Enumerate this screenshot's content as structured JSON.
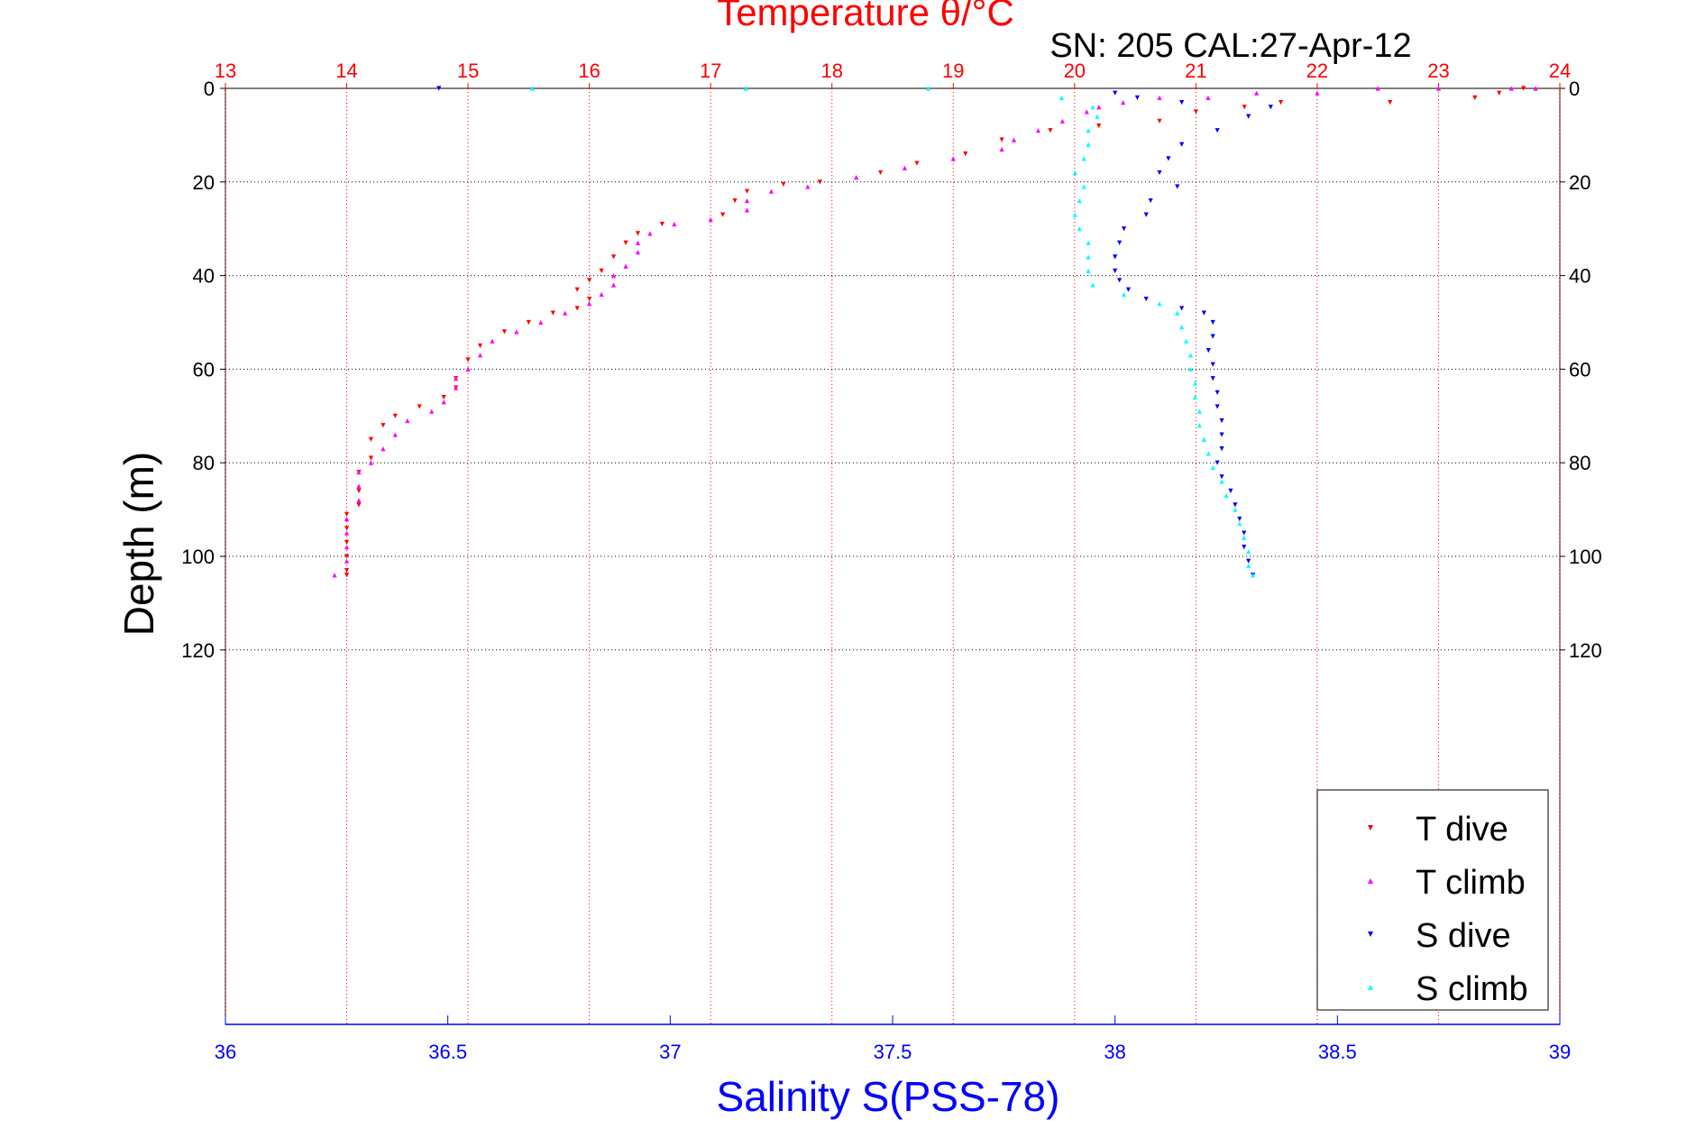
{
  "chart_data": {
    "type": "scatter",
    "title": "Temperature θ/°C",
    "subtitle": "SN: 205  CAL:27-Apr-12",
    "ylabel": "Depth (m)",
    "xlabel": "Salinity S(PSS-78)",
    "top_axis": {
      "label": "Temperature θ/°C",
      "range": [
        13,
        24
      ],
      "ticks": [
        "13",
        "14",
        "15",
        "16",
        "17",
        "18",
        "19",
        "20",
        "21",
        "22",
        "23",
        "24"
      ]
    },
    "bottom_axis": {
      "label": "Salinity S(PSS-78)",
      "range": [
        36,
        39
      ],
      "ticks": [
        "36",
        "36.5",
        "37",
        "37.5",
        "38",
        "38.5",
        "39"
      ]
    },
    "y_axis": {
      "range": [
        0,
        200
      ],
      "reversed": true,
      "ticks": [
        "0",
        "20",
        "40",
        "60",
        "80",
        "100",
        "120"
      ]
    },
    "grid": true,
    "legend_position": "bottom-right",
    "colors": {
      "temperature": "#ff0000",
      "salinity": "#0000ff",
      "T dive": "#ff0000",
      "T climb": "#ff00ff",
      "S dive": "#0000ff",
      "S climb": "#00ffff"
    },
    "series": [
      {
        "name": "T dive",
        "axis": "temperature",
        "marker": "triangle-down",
        "points": [
          [
            23.7,
            0
          ],
          [
            23.5,
            1
          ],
          [
            23.3,
            2
          ],
          [
            22.6,
            3
          ],
          [
            21.7,
            3
          ],
          [
            21.4,
            4
          ],
          [
            21.0,
            5
          ],
          [
            20.7,
            7
          ],
          [
            20.2,
            8
          ],
          [
            19.8,
            9
          ],
          [
            19.4,
            11
          ],
          [
            19.1,
            14
          ],
          [
            18.7,
            16
          ],
          [
            18.4,
            18
          ],
          [
            17.9,
            20
          ],
          [
            17.6,
            20.5
          ],
          [
            17.3,
            22
          ],
          [
            17.2,
            24
          ],
          [
            17.1,
            27
          ],
          [
            16.6,
            29
          ],
          [
            16.4,
            31
          ],
          [
            16.3,
            33
          ],
          [
            16.2,
            36
          ],
          [
            16.1,
            39
          ],
          [
            16.0,
            41
          ],
          [
            15.9,
            43
          ],
          [
            16.0,
            45
          ],
          [
            15.9,
            47
          ],
          [
            15.7,
            48
          ],
          [
            15.5,
            50
          ],
          [
            15.3,
            52
          ],
          [
            15.1,
            55
          ],
          [
            15.0,
            58
          ],
          [
            14.9,
            62
          ],
          [
            14.9,
            64
          ],
          [
            14.8,
            66
          ],
          [
            14.6,
            68
          ],
          [
            14.4,
            70
          ],
          [
            14.3,
            72
          ],
          [
            14.2,
            75
          ],
          [
            14.2,
            79
          ],
          [
            14.1,
            82
          ],
          [
            14.1,
            86
          ],
          [
            14.1,
            89
          ],
          [
            14.0,
            91
          ],
          [
            14.0,
            94
          ],
          [
            14.0,
            97
          ],
          [
            14.0,
            100
          ],
          [
            14.0,
            103
          ],
          [
            14.0,
            104
          ]
        ]
      },
      {
        "name": "T climb",
        "axis": "temperature",
        "marker": "triangle-up",
        "points": [
          [
            13.9,
            104
          ],
          [
            14.0,
            101
          ],
          [
            14.0,
            98
          ],
          [
            14.0,
            95
          ],
          [
            14.0,
            92
          ],
          [
            14.1,
            88
          ],
          [
            14.1,
            85
          ],
          [
            14.1,
            82
          ],
          [
            14.2,
            80
          ],
          [
            14.3,
            77
          ],
          [
            14.4,
            74
          ],
          [
            14.5,
            71
          ],
          [
            14.7,
            69
          ],
          [
            14.8,
            67
          ],
          [
            14.9,
            64
          ],
          [
            14.9,
            62
          ],
          [
            15.0,
            60
          ],
          [
            15.1,
            57
          ],
          [
            15.2,
            54
          ],
          [
            15.4,
            52
          ],
          [
            15.6,
            50
          ],
          [
            15.8,
            48
          ],
          [
            16.0,
            46
          ],
          [
            16.1,
            44
          ],
          [
            16.2,
            42
          ],
          [
            16.2,
            40
          ],
          [
            16.3,
            38
          ],
          [
            16.4,
            35
          ],
          [
            16.4,
            33
          ],
          [
            16.5,
            31
          ],
          [
            16.7,
            29
          ],
          [
            17.0,
            28
          ],
          [
            17.3,
            26
          ],
          [
            17.3,
            24
          ],
          [
            17.5,
            22
          ],
          [
            17.8,
            21
          ],
          [
            18.2,
            19
          ],
          [
            18.6,
            17
          ],
          [
            19.0,
            15
          ],
          [
            19.4,
            13
          ],
          [
            19.5,
            11
          ],
          [
            19.7,
            9
          ],
          [
            19.9,
            7
          ],
          [
            20.1,
            5
          ],
          [
            20.2,
            4
          ],
          [
            20.4,
            3
          ],
          [
            20.7,
            2
          ],
          [
            21.1,
            2
          ],
          [
            21.5,
            1
          ],
          [
            22.0,
            1
          ],
          [
            22.5,
            0
          ],
          [
            23.0,
            0
          ],
          [
            23.6,
            0
          ],
          [
            23.8,
            0
          ]
        ]
      },
      {
        "name": "S dive",
        "axis": "salinity",
        "marker": "triangle-down",
        "points": [
          [
            36.48,
            0
          ],
          [
            38.0,
            1
          ],
          [
            38.05,
            2
          ],
          [
            38.15,
            3
          ],
          [
            38.35,
            4
          ],
          [
            38.3,
            6
          ],
          [
            38.23,
            9
          ],
          [
            38.15,
            12
          ],
          [
            38.12,
            15
          ],
          [
            38.1,
            18
          ],
          [
            38.14,
            21
          ],
          [
            38.08,
            24
          ],
          [
            38.07,
            27
          ],
          [
            38.02,
            30
          ],
          [
            38.01,
            33
          ],
          [
            38.0,
            36
          ],
          [
            38.0,
            39
          ],
          [
            38.01,
            41
          ],
          [
            38.03,
            43
          ],
          [
            38.07,
            45
          ],
          [
            38.15,
            47
          ],
          [
            38.2,
            48
          ],
          [
            38.22,
            50
          ],
          [
            38.22,
            53
          ],
          [
            38.21,
            56
          ],
          [
            38.22,
            59
          ],
          [
            38.22,
            62
          ],
          [
            38.23,
            65
          ],
          [
            38.23,
            68
          ],
          [
            38.24,
            71
          ],
          [
            38.24,
            74
          ],
          [
            38.24,
            77
          ],
          [
            38.23,
            80
          ],
          [
            38.24,
            83
          ],
          [
            38.26,
            86
          ],
          [
            38.27,
            89
          ],
          [
            38.28,
            92
          ],
          [
            38.29,
            95
          ],
          [
            38.29,
            98
          ],
          [
            38.3,
            101
          ],
          [
            38.31,
            104
          ]
        ]
      },
      {
        "name": "S climb",
        "axis": "salinity",
        "marker": "triangle-up",
        "points": [
          [
            36.69,
            0
          ],
          [
            37.17,
            0
          ],
          [
            37.58,
            0
          ],
          [
            37.88,
            2
          ],
          [
            37.95,
            4
          ],
          [
            37.96,
            6
          ],
          [
            37.94,
            9
          ],
          [
            37.94,
            12
          ],
          [
            37.93,
            15
          ],
          [
            37.91,
            18
          ],
          [
            37.93,
            21
          ],
          [
            37.92,
            24
          ],
          [
            37.91,
            27
          ],
          [
            37.92,
            30
          ],
          [
            37.94,
            33
          ],
          [
            37.94,
            36
          ],
          [
            37.94,
            39
          ],
          [
            37.95,
            42
          ],
          [
            38.02,
            44
          ],
          [
            38.1,
            46
          ],
          [
            38.14,
            48
          ],
          [
            38.15,
            51
          ],
          [
            38.16,
            54
          ],
          [
            38.17,
            57
          ],
          [
            38.17,
            60
          ],
          [
            38.18,
            63
          ],
          [
            38.18,
            66
          ],
          [
            38.19,
            69
          ],
          [
            38.19,
            72
          ],
          [
            38.2,
            75
          ],
          [
            38.21,
            78
          ],
          [
            38.22,
            81
          ],
          [
            38.24,
            84
          ],
          [
            38.25,
            87
          ],
          [
            38.27,
            90
          ],
          [
            38.28,
            93
          ],
          [
            38.29,
            96
          ],
          [
            38.3,
            99
          ],
          [
            38.3,
            102
          ],
          [
            38.31,
            104
          ]
        ]
      }
    ]
  }
}
